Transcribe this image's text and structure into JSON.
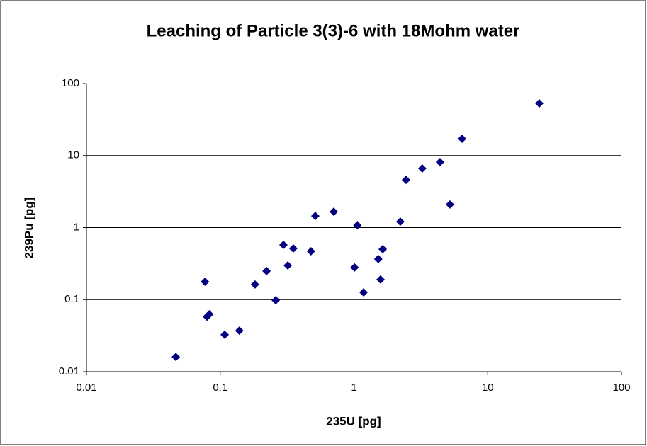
{
  "chart_data": {
    "type": "scatter",
    "title": "Leaching of Particle 3(3)-6 with 18Mohm water",
    "x_label": "235U [pg]",
    "y_label": "239Pu [pg]",
    "x": [
      0.0466,
      0.077,
      0.0796,
      0.083,
      0.108,
      0.139,
      0.182,
      0.222,
      0.26,
      0.297,
      0.32,
      0.352,
      0.477,
      0.514,
      0.706,
      1.01,
      1.06,
      1.18,
      1.52,
      1.58,
      1.64,
      2.22,
      2.45,
      3.24,
      4.4,
      5.22,
      6.43,
      24.3
    ],
    "values": [
      0.016,
      0.177,
      0.058,
      0.0625,
      0.0325,
      0.037,
      0.162,
      0.249,
      0.098,
      0.574,
      0.298,
      0.513,
      0.469,
      1.45,
      1.66,
      0.279,
      1.08,
      0.126,
      0.366,
      0.19,
      0.501,
      1.21,
      4.6,
      6.62,
      8.1,
      2.09,
      17.1,
      53
    ],
    "color": "#000080",
    "xlim": [
      0.01,
      100
    ],
    "xticks": [
      0.01,
      0.1,
      1,
      10,
      100
    ],
    "ylim": [
      0.01,
      100
    ],
    "yticks": [
      0.01,
      0.1,
      1,
      10,
      100
    ],
    "xlog": true,
    "ylog": true,
    "grid": true
  }
}
